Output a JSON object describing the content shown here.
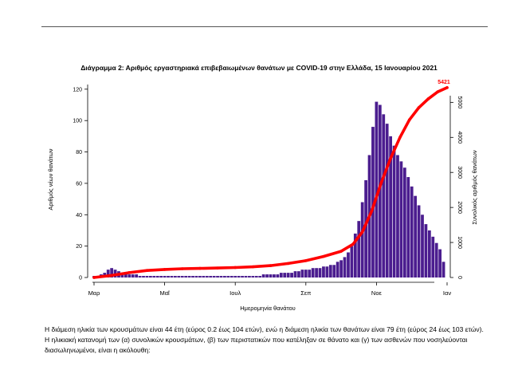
{
  "chart_data": {
    "type": "bar",
    "title": "Διάγραμμα 2: Αριθμός εργαστηριακά επιβεβαιωμένων θανάτων με COVID-19 στην Ελλάδα, 15 Ιανουαρίου 2021",
    "xlabel": "Ημερομηνία θανάτου",
    "ylabel": "Αριθμός νέων θανάτων",
    "y2label": "Συνολικός αριθμός θανάτων",
    "ylim": [
      0,
      125
    ],
    "y2lim": [
      0,
      5600
    ],
    "yticks": [
      0,
      20,
      40,
      60,
      80,
      100,
      120
    ],
    "y2ticks": [
      0,
      1000,
      2000,
      3000,
      4000,
      5000
    ],
    "xticks": [
      "Μαρ",
      "Μαΐ",
      "Ιουλ",
      "Σεπ",
      "Νοε",
      "Ιαν"
    ],
    "grid": false,
    "series": [
      {
        "kind": "bars",
        "axis": "left",
        "color": "#4b1d8f",
        "points": [
          [
            0,
            1
          ],
          [
            3,
            1
          ],
          [
            6,
            2
          ],
          [
            9,
            3
          ],
          [
            12,
            5
          ],
          [
            15,
            6
          ],
          [
            18,
            5
          ],
          [
            21,
            4
          ],
          [
            24,
            3
          ],
          [
            27,
            3
          ],
          [
            30,
            2
          ],
          [
            33,
            2
          ],
          [
            36,
            2
          ],
          [
            39,
            1
          ],
          [
            42,
            1
          ],
          [
            45,
            1
          ],
          [
            48,
            1
          ],
          [
            51,
            1
          ],
          [
            54,
            1
          ],
          [
            57,
            1
          ],
          [
            60,
            1
          ],
          [
            63,
            1
          ],
          [
            66,
            1
          ],
          [
            69,
            1
          ],
          [
            72,
            1
          ],
          [
            75,
            1
          ],
          [
            78,
            1
          ],
          [
            81,
            1
          ],
          [
            84,
            1
          ],
          [
            87,
            1
          ],
          [
            90,
            1
          ],
          [
            93,
            1
          ],
          [
            96,
            1
          ],
          [
            99,
            1
          ],
          [
            102,
            1
          ],
          [
            105,
            1
          ],
          [
            108,
            1
          ],
          [
            111,
            1
          ],
          [
            114,
            1
          ],
          [
            117,
            1
          ],
          [
            120,
            1
          ],
          [
            123,
            1
          ],
          [
            126,
            1
          ],
          [
            129,
            1
          ],
          [
            132,
            1
          ],
          [
            135,
            1
          ],
          [
            138,
            1
          ],
          [
            141,
            1
          ],
          [
            144,
            2
          ],
          [
            147,
            2
          ],
          [
            150,
            2
          ],
          [
            153,
            2
          ],
          [
            156,
            2
          ],
          [
            159,
            3
          ],
          [
            162,
            3
          ],
          [
            165,
            3
          ],
          [
            168,
            3
          ],
          [
            171,
            4
          ],
          [
            174,
            4
          ],
          [
            177,
            5
          ],
          [
            180,
            5
          ],
          [
            183,
            5
          ],
          [
            186,
            6
          ],
          [
            189,
            6
          ],
          [
            192,
            6
          ],
          [
            195,
            7
          ],
          [
            198,
            7
          ],
          [
            201,
            8
          ],
          [
            204,
            8
          ],
          [
            207,
            10
          ],
          [
            210,
            11
          ],
          [
            213,
            13
          ],
          [
            216,
            16
          ],
          [
            219,
            20
          ],
          [
            222,
            28
          ],
          [
            225,
            36
          ],
          [
            228,
            48
          ],
          [
            231,
            62
          ],
          [
            234,
            78
          ],
          [
            237,
            96
          ],
          [
            240,
            112
          ],
          [
            243,
            110
          ],
          [
            246,
            104
          ],
          [
            249,
            98
          ],
          [
            252,
            90
          ],
          [
            255,
            84
          ],
          [
            258,
            78
          ],
          [
            261,
            74
          ],
          [
            264,
            70
          ],
          [
            267,
            64
          ],
          [
            270,
            58
          ],
          [
            273,
            52
          ],
          [
            276,
            46
          ],
          [
            279,
            40
          ],
          [
            282,
            34
          ],
          [
            285,
            30
          ],
          [
            288,
            26
          ],
          [
            291,
            22
          ],
          [
            294,
            18
          ],
          [
            297,
            10
          ]
        ]
      },
      {
        "kind": "line",
        "axis": "right",
        "color": "#ff0000",
        "points": [
          [
            0,
            0
          ],
          [
            15,
            60
          ],
          [
            30,
            140
          ],
          [
            45,
            200
          ],
          [
            60,
            230
          ],
          [
            75,
            250
          ],
          [
            90,
            260
          ],
          [
            105,
            270
          ],
          [
            120,
            285
          ],
          [
            135,
            305
          ],
          [
            150,
            340
          ],
          [
            165,
            400
          ],
          [
            180,
            480
          ],
          [
            195,
            600
          ],
          [
            210,
            750
          ],
          [
            220,
            950
          ],
          [
            228,
            1300
          ],
          [
            236,
            1900
          ],
          [
            244,
            2700
          ],
          [
            252,
            3400
          ],
          [
            260,
            4000
          ],
          [
            268,
            4500
          ],
          [
            276,
            4850
          ],
          [
            284,
            5100
          ],
          [
            292,
            5300
          ],
          [
            300,
            5421
          ]
        ]
      }
    ],
    "annotations": {
      "final_total": "5421"
    }
  },
  "text": {
    "para1": "Η διάμεση ηλικία των κρουσμάτων είναι 44 έτη (εύρος 0.2 έως 104 ετών), ενώ η διάμεση ηλικία των θανάτων είναι 79 έτη (εύρος 24 έως 103 ετών).",
    "para2": "Η ηλικιακή κατανομή των (α) συνολικών κρουσμάτων, (β) των περιστατικών που κατέληξαν σε θάνατο και (γ) των ασθενών που νοσηλεύονται διασωληνωμένοι, είναι η ακόλουθη:"
  }
}
